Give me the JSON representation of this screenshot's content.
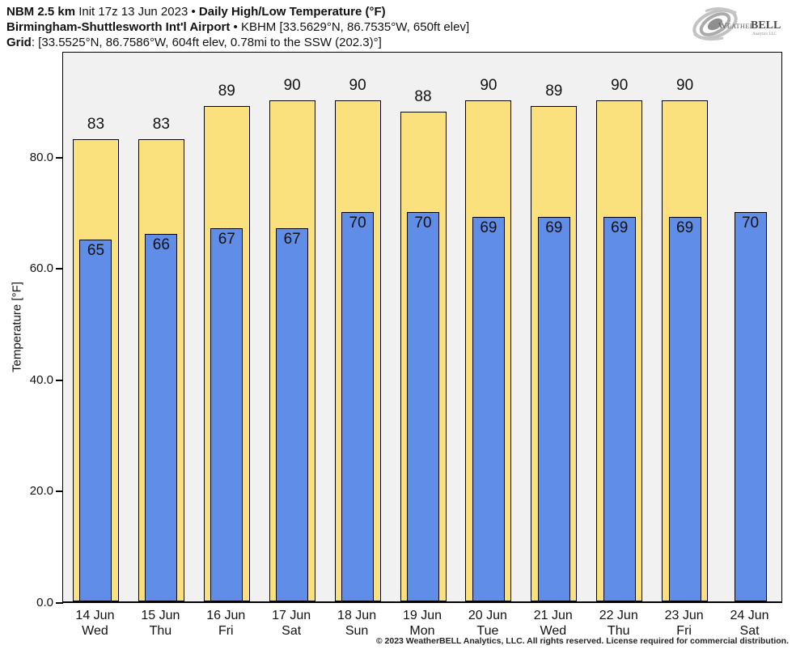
{
  "header": {
    "line1": {
      "model": "NBM 2.5 km",
      "init": "Init 17z 13 Jun 2023",
      "bullet": "•",
      "title": "Daily High/Low Temperature (°F)"
    },
    "line2": {
      "station": "Birmingham-Shuttlesworth Int'l Airport",
      "bullet": "•",
      "details": "KBHM [33.5629°N, 86.7535°W, 650ft elev]"
    },
    "line3": {
      "label": "Grid",
      "details": ": [33.5525°N, 86.7586°W, 604ft elev, 0.78mi to the SSW (202.3)°]"
    }
  },
  "logo": {
    "weather": "Weather",
    "bell": "BELL",
    "sub": "Analytics LLC"
  },
  "chart_data": {
    "type": "bar",
    "title": "Daily High/Low Temperature (°F)",
    "categories": [
      {
        "date": "14 Jun",
        "day": "Wed"
      },
      {
        "date": "15 Jun",
        "day": "Thu"
      },
      {
        "date": "16 Jun",
        "day": "Fri"
      },
      {
        "date": "17 Jun",
        "day": "Sat"
      },
      {
        "date": "18 Jun",
        "day": "Sun"
      },
      {
        "date": "19 Jun",
        "day": "Mon"
      },
      {
        "date": "20 Jun",
        "day": "Tue"
      },
      {
        "date": "21 Jun",
        "day": "Wed"
      },
      {
        "date": "22 Jun",
        "day": "Thu"
      },
      {
        "date": "23 Jun",
        "day": "Fri"
      },
      {
        "date": "24 Jun",
        "day": "Sat"
      }
    ],
    "series": [
      {
        "name": "High",
        "color": "#FBE17E",
        "values": [
          83,
          83,
          89,
          90,
          90,
          88,
          90,
          89,
          90,
          90,
          null
        ]
      },
      {
        "name": "Low",
        "color": "#5F8DE8",
        "values": [
          65,
          66,
          67,
          67,
          70,
          70,
          69,
          69,
          69,
          69,
          70
        ]
      }
    ],
    "ylabel": "Temperature [°F]",
    "yticks": [
      0,
      20,
      40,
      60,
      80
    ],
    "ytick_labels": [
      "0.0",
      "20.0",
      "40.0",
      "60.0",
      "80.0"
    ],
    "ylim": [
      0,
      99
    ],
    "grid": false,
    "legend": "none",
    "plot_background": "#f1f1f1"
  },
  "footer": {
    "copyright": "© 2023 WeatherBELL Analytics, LLC. All rights reserved. License required for commercial distribution."
  }
}
